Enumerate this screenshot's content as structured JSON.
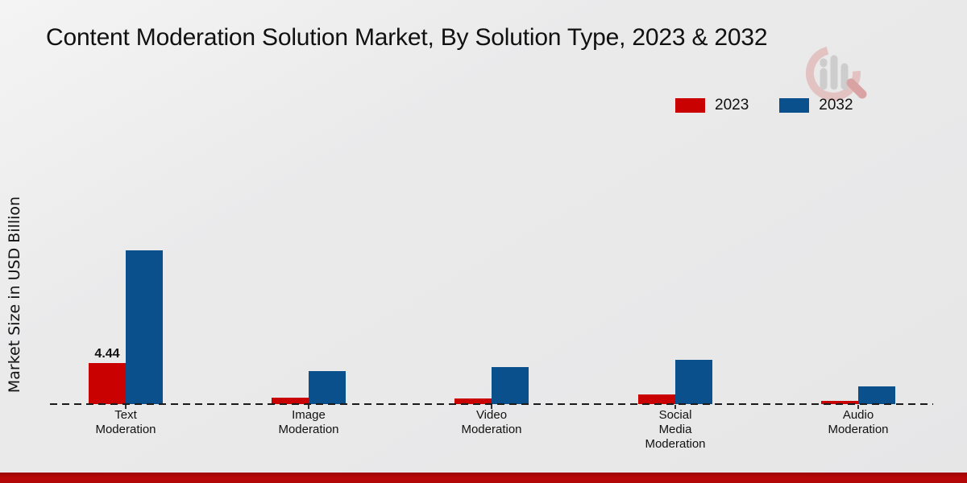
{
  "page": {
    "title": "Content Moderation Solution Market, By Solution Type, 2023 & 2032",
    "ylabel": "Market Size in USD Billion",
    "colors": {
      "series_2023": "#c90101",
      "series_2032": "#09508c",
      "footer_bar": "#b00606",
      "baseline": "#1a1a1a",
      "background": "#e9e9ea"
    }
  },
  "legend": {
    "items": [
      {
        "label": "2023",
        "color": "#c90101"
      },
      {
        "label": "2032",
        "color": "#09508c"
      }
    ]
  },
  "chart_data": {
    "type": "bar",
    "grouped": true,
    "title": "Content Moderation Solution Market, By Solution Type, 2023 & 2032",
    "xlabel": "",
    "ylabel": "Market Size in USD Billion",
    "unit": "USD Billion",
    "categories": [
      "Text Moderation",
      "Image Moderation",
      "Video Moderation",
      "Social Media Moderation",
      "Audio Moderation"
    ],
    "category_label_lines": [
      [
        "Text",
        "Moderation"
      ],
      [
        "Image",
        "Moderation"
      ],
      [
        "Video",
        "Moderation"
      ],
      [
        "Social",
        "Media",
        "Moderation"
      ],
      [
        "Audio",
        "Moderation"
      ]
    ],
    "series": [
      {
        "name": "2023",
        "color": "#c90101",
        "values": [
          4.44,
          0.7,
          0.61,
          1.04,
          0.35
        ]
      },
      {
        "name": "2032",
        "color": "#09508c",
        "values": [
          16.63,
          3.57,
          4.0,
          4.79,
          1.92
        ]
      }
    ],
    "data_labels": [
      {
        "series_index": 0,
        "category_index": 0,
        "text": "4.44"
      }
    ],
    "ylim": [
      0,
      18
    ],
    "grid": false,
    "legend_position": "top-right",
    "baseline_style": "dashed"
  }
}
